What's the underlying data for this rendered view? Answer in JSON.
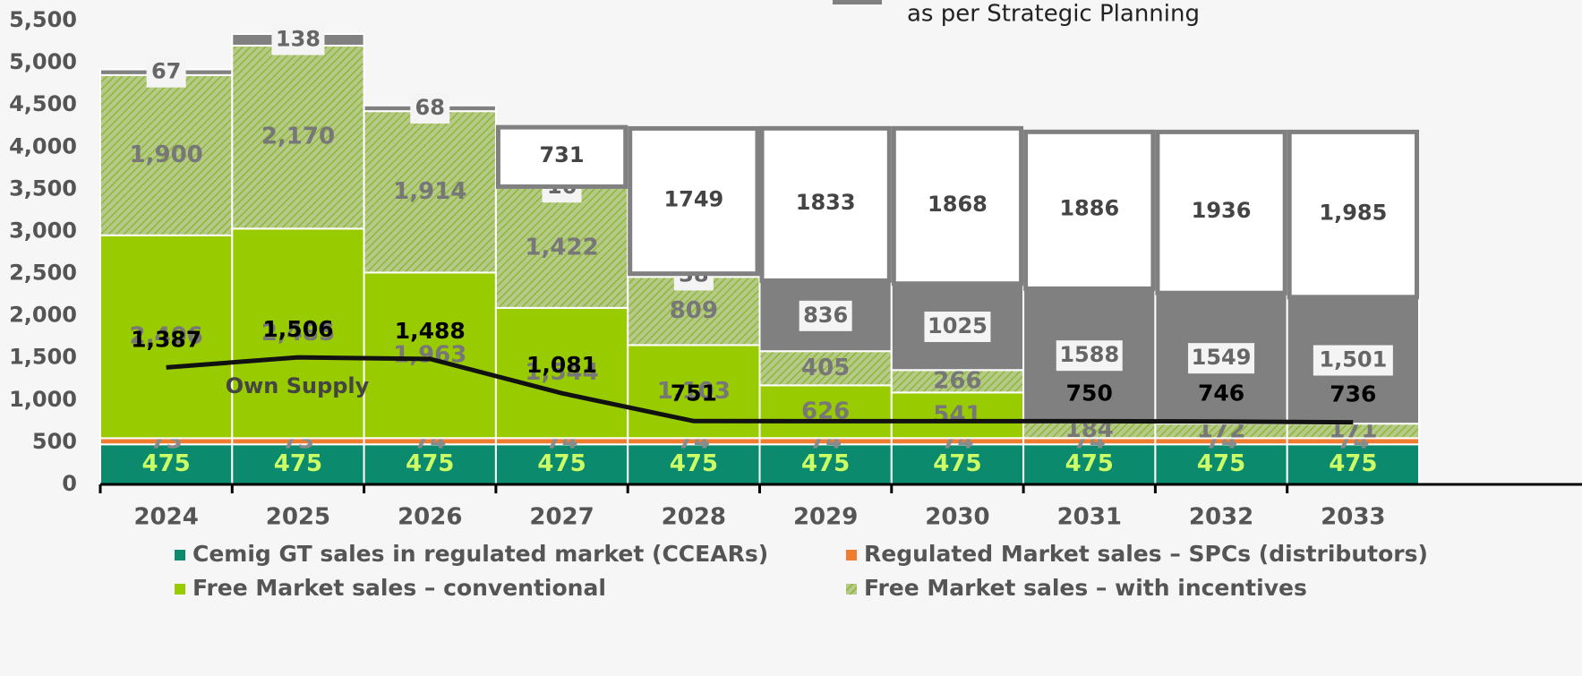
{
  "chart_data": {
    "type": "bar",
    "stacked": true,
    "categories": [
      "2024",
      "2025",
      "2026",
      "2027",
      "2028",
      "2029",
      "2030",
      "2031",
      "2032",
      "2033"
    ],
    "ylim": [
      0,
      5500
    ],
    "yticks": [
      0,
      500,
      {
        "value": 1000,
        "label": "1,000"
      },
      {
        "value": 1500,
        "label": "1,500"
      },
      {
        "value": 2000,
        "label": "2,000"
      },
      {
        "value": 2500,
        "label": "2,500"
      },
      {
        "value": 3000,
        "label": "3,000"
      },
      {
        "value": 3500,
        "label": "3,500"
      },
      {
        "value": 4000,
        "label": "4,000"
      },
      {
        "value": 4500,
        "label": "4,500"
      },
      {
        "value": 5000,
        "label": "5,000"
      },
      {
        "value": 5500,
        "label": "5,500"
      }
    ],
    "series": [
      {
        "name": "Cemig GT sales in regulated market (CCEARs)",
        "color": "#0b8a6d",
        "values": [
          475,
          475,
          475,
          475,
          475,
          475,
          475,
          475,
          475,
          475
        ]
      },
      {
        "name": "Regulated Market sales – SPCs (distributors)",
        "color": "#f07c30",
        "values": [
          73,
          73,
          74,
          74,
          74,
          74,
          74,
          74,
          74,
          74
        ]
      },
      {
        "name": "Free Market sales – conventional",
        "color": "#99cc00",
        "values": [
          2406,
          2485,
          1963,
          1544,
          1103,
          626,
          541,
          0,
          0,
          0
        ],
        "value_labels": [
          "2,406",
          "2,485",
          "1,963",
          "1,544",
          "1,103",
          "626",
          "541",
          null,
          null,
          null
        ]
      },
      {
        "name": "Free Market sales – with incentives",
        "color": "#99cc00",
        "pattern": "hatch",
        "values": [
          1900,
          2170,
          1914,
          1422,
          809,
          405,
          266,
          184,
          172,
          171
        ],
        "value_labels": [
          "1,900",
          "2,170",
          "1,914",
          "1,422",
          "809",
          "405",
          "266",
          "184",
          "172",
          "171"
        ]
      },
      {
        "name": "as per Strategic Planning",
        "color": "#808080",
        "values": [
          67,
          138,
          68,
          16,
          38,
          836,
          1025,
          1588,
          1549,
          1501
        ],
        "value_labels": [
          "67",
          "138",
          "68",
          "16",
          "38",
          "836",
          "1025",
          "1588",
          "1549",
          "1,501"
        ]
      },
      {
        "name": null,
        "color": "#ffffff",
        "border": "#808080",
        "values": [
          null,
          null,
          null,
          731,
          1749,
          1833,
          1868,
          1886,
          1936,
          1985
        ],
        "value_labels": [
          null,
          null,
          null,
          "731",
          "1749",
          "1833",
          "1868",
          "1886",
          "1936",
          "1,985"
        ]
      },
      {
        "name": "Own Supply",
        "type": "line",
        "color": "#111111",
        "values": [
          1387,
          1506,
          1488,
          1081,
          751,
          750,
          750,
          750,
          746,
          736
        ],
        "value_labels": [
          "1,387",
          "1,506",
          "1,488",
          "1,081",
          "751",
          null,
          null,
          "750",
          "746",
          "736"
        ]
      }
    ]
  }
}
